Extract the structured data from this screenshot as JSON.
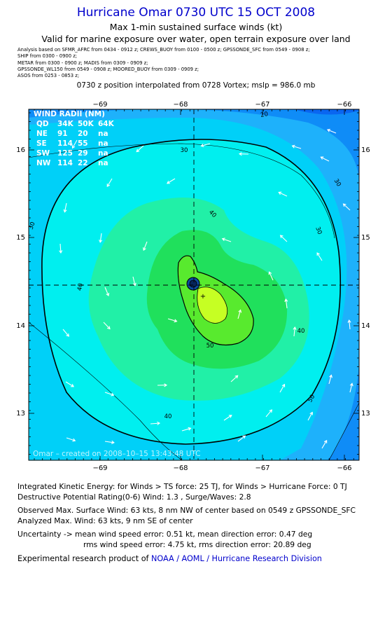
{
  "header": {
    "title": "Hurricane Omar 0730 UTC 15 OCT 2008",
    "subtitle": "Max 1-min sustained surface winds (kt)",
    "valid_line": "Valid for marine exposure over water, open terrain exposure over land",
    "analysis_lines": [
      "Analysis based on   SFMR_AFRC from 0434 - 0912 z;  CREWS_BUOY from 0100 - 0500 z;  GPSSONDE_SFC from 0549 - 0908 z;",
      "SHIP from 0300 - 0900 z;",
      "METAR from 0300 - 0900 z;   MADIS from 0309 - 0909 z;",
      "GPSSONDE_WL150 from 0549 - 0908 z;   MOORED_BUOY from 0309 - 0909 z;",
      "ASOS from 0253 - 0853 z;"
    ],
    "position_line": "0730 z position interpolated from 0728 Vortex; mslp = 986.0 mb"
  },
  "map": {
    "top_lon_labels": [
      "−69",
      "−68",
      "−67",
      "−66"
    ],
    "bottom_lon_labels": [
      "−69",
      "−68",
      "−67",
      "−66"
    ],
    "lat_labels": [
      "16",
      "15",
      "14",
      "13"
    ],
    "contour_labels": [
      "20",
      "30",
      "30",
      "30",
      "30",
      "40",
      "40",
      "40",
      "40",
      "50",
      "50"
    ],
    "wind_radii": {
      "title": "WIND RADII (NM)",
      "header": [
        "QD",
        "34K",
        "50K",
        "64K"
      ],
      "rows": [
        [
          "NE",
          "91",
          "20",
          "na"
        ],
        [
          "SE",
          "114",
          "55",
          "na"
        ],
        [
          "SW",
          "125",
          "29",
          "na"
        ],
        [
          "NW",
          "114",
          "22",
          "na"
        ]
      ]
    },
    "footer_text": "Omar – created on 2008–10–15 13:43:48 UTC",
    "colors": {
      "band_20": "#0a66f0",
      "band_25": "#0f8cf7",
      "band_30": "#1eb1fb",
      "band_35": "#00d0f8",
      "band_40": "#00efef",
      "band_45": "#21f0a7",
      "band_50": "#20e05c",
      "band_55": "#58ea2e",
      "band_60": "#c6ff23",
      "arrow": "#ffffff"
    }
  },
  "stats": {
    "ike": "Integrated Kinetic Energy:  for Winds > TS force: 25 TJ,  for Winds > Hurricane Force: 0 TJ",
    "dpr": "Destructive Potential Rating(0-6)   Wind: 1.3 , Surge/Waves: 2.8",
    "observed_max": "Observed Max. Surface Wind: 63 kts, 8 nm NW of center based on 0549 z GPSSONDE_SFC",
    "analyzed_max": "Analyzed Max. Wind: 63 kts, 9 nm SE of center",
    "uncertainty_1": "Uncertainty -> mean wind speed error: 0.51 kt,   mean direction error: 0.47 deg",
    "uncertainty_2": "rms wind speed error: 4.75 kt,   rms direction error: 20.89 deg",
    "credit_prefix": "Experimental research product of ",
    "credit_link": "NOAA / AOML / Hurricane Research Division"
  }
}
